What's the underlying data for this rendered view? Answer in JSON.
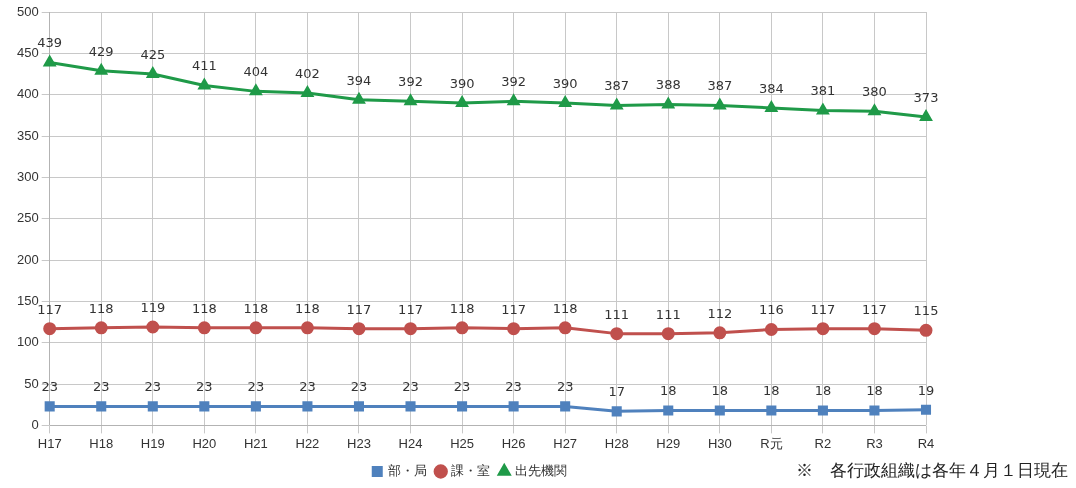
{
  "chart_data": {
    "type": "line",
    "categories": [
      "H17",
      "H18",
      "H19",
      "H20",
      "H21",
      "H22",
      "H23",
      "H24",
      "H25",
      "H26",
      "H27",
      "H28",
      "H29",
      "H30",
      "R元",
      "R2",
      "R3",
      "R4"
    ],
    "series": [
      {
        "name": "部・局",
        "color": "#4f81bd",
        "marker": "square",
        "values": [
          23,
          23,
          23,
          23,
          23,
          23,
          23,
          23,
          23,
          23,
          23,
          17,
          18,
          18,
          18,
          18,
          18,
          19
        ]
      },
      {
        "name": "課・室",
        "color": "#c0504d",
        "marker": "circle",
        "values": [
          117,
          118,
          119,
          118,
          118,
          118,
          117,
          117,
          118,
          117,
          118,
          111,
          111,
          112,
          116,
          117,
          117,
          115
        ]
      },
      {
        "name": "出先機関",
        "color": "#1f9a48",
        "marker": "triangle",
        "values": [
          439,
          429,
          425,
          411,
          404,
          402,
          394,
          392,
          390,
          392,
          390,
          387,
          388,
          387,
          384,
          381,
          380,
          373
        ]
      }
    ],
    "ylim": [
      0,
      500
    ],
    "yticks": [
      0,
      50,
      100,
      150,
      200,
      250,
      300,
      350,
      400,
      450,
      500
    ],
    "grid": true,
    "legend": "bottom",
    "data_labels": true,
    "line_style": "solid",
    "annotations": [
      "※　各行政組織は各年４月１日現在"
    ]
  }
}
